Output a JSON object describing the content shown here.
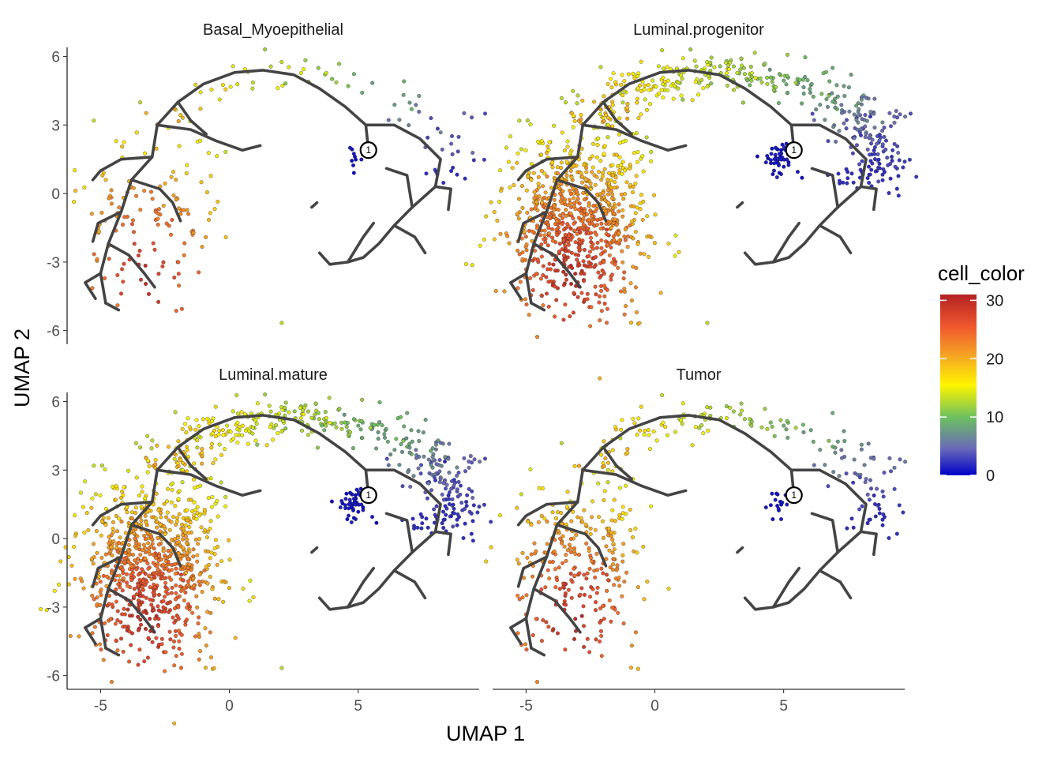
{
  "chart_data": {
    "type": "scatter",
    "xlabel": "UMAP 1",
    "ylabel": "UMAP 2",
    "xlim": [
      -6.3,
      9.7
    ],
    "ylim": [
      -6.6,
      6.4
    ],
    "x_ticks": [
      -5,
      0,
      5
    ],
    "y_ticks": [
      -6,
      -3,
      0,
      3,
      6
    ],
    "grid": false,
    "legend": {
      "title": "cell_color",
      "placement": "right",
      "range": [
        0,
        31
      ],
      "ticks": [
        0,
        10,
        20,
        30
      ],
      "colors": [
        "#0000c8",
        "#6a6ab8",
        "#6cc060",
        "#fff500",
        "#f5a623",
        "#f0582f",
        "#b22222"
      ]
    },
    "panels": [
      {
        "name": "Basal_Myoepithelial",
        "density": 0.18
      },
      {
        "name": "Luminal.progenitor",
        "density": 1.0
      },
      {
        "name": "Luminal.mature",
        "density": 1.0
      },
      {
        "name": "Tumor",
        "density": 0.35
      }
    ],
    "root_node": {
      "label": "1",
      "x": 5.4,
      "y": 1.9
    },
    "trajectory": [
      [
        [
          5.4,
          1.9
        ],
        [
          5.3,
          3.0
        ],
        [
          4.5,
          3.8
        ],
        [
          3.5,
          4.6
        ],
        [
          2.5,
          5.2
        ],
        [
          1.3,
          5.4
        ],
        [
          0.2,
          5.3
        ],
        [
          -1.0,
          4.8
        ],
        [
          -2.0,
          4.0
        ],
        [
          -2.8,
          3.0
        ],
        [
          -3.0,
          1.6
        ],
        [
          -3.8,
          0.6
        ],
        [
          -4.2,
          -0.8
        ],
        [
          -4.7,
          -2.2
        ],
        [
          -5.0,
          -3.5
        ],
        [
          -4.8,
          -4.8
        ]
      ],
      [
        [
          -2.8,
          3.0
        ],
        [
          -1.5,
          2.8
        ],
        [
          -0.5,
          2.3
        ],
        [
          0.5,
          1.9
        ],
        [
          1.2,
          2.1
        ]
      ],
      [
        [
          -2.0,
          4.0
        ],
        [
          -1.5,
          3.2
        ],
        [
          -0.9,
          2.6
        ]
      ],
      [
        [
          -3.0,
          1.6
        ],
        [
          -4.2,
          1.5
        ],
        [
          -5.0,
          1.0
        ],
        [
          -5.3,
          0.6
        ]
      ],
      [
        [
          -3.8,
          0.6
        ],
        [
          -2.7,
          0.2
        ],
        [
          -2.2,
          -0.4
        ],
        [
          -1.9,
          -1.2
        ]
      ],
      [
        [
          -4.2,
          -0.8
        ],
        [
          -5.1,
          -1.3
        ],
        [
          -5.3,
          -2.1
        ]
      ],
      [
        [
          -4.7,
          -2.2
        ],
        [
          -3.9,
          -2.7
        ],
        [
          -3.3,
          -3.5
        ],
        [
          -2.9,
          -4.1
        ]
      ],
      [
        [
          -5.0,
          -3.5
        ],
        [
          -5.6,
          -3.9
        ],
        [
          -5.2,
          -4.6
        ]
      ],
      [
        [
          -4.8,
          -4.8
        ],
        [
          -4.3,
          -5.1
        ]
      ],
      [
        [
          5.3,
          3.0
        ],
        [
          6.4,
          3.0
        ],
        [
          7.4,
          2.4
        ],
        [
          8.2,
          1.5
        ],
        [
          8.0,
          0.3
        ],
        [
          7.1,
          -0.6
        ],
        [
          6.4,
          -1.4
        ],
        [
          5.8,
          -2.2
        ],
        [
          5.2,
          -2.8
        ],
        [
          4.6,
          -3.0
        ],
        [
          3.9,
          -3.1
        ],
        [
          3.5,
          -2.6
        ]
      ],
      [
        [
          8.0,
          0.3
        ],
        [
          8.6,
          0.2
        ],
        [
          8.5,
          -0.7
        ]
      ],
      [
        [
          7.1,
          -0.6
        ],
        [
          6.9,
          0.8
        ],
        [
          6.1,
          1.1
        ]
      ],
      [
        [
          6.4,
          -1.4
        ],
        [
          7.2,
          -1.9
        ],
        [
          7.6,
          -2.6
        ]
      ],
      [
        [
          4.6,
          -3.0
        ],
        [
          5.2,
          -1.9
        ],
        [
          5.6,
          -1.3
        ]
      ],
      [
        [
          3.4,
          -0.4
        ],
        [
          3.2,
          -0.6
        ]
      ]
    ]
  }
}
